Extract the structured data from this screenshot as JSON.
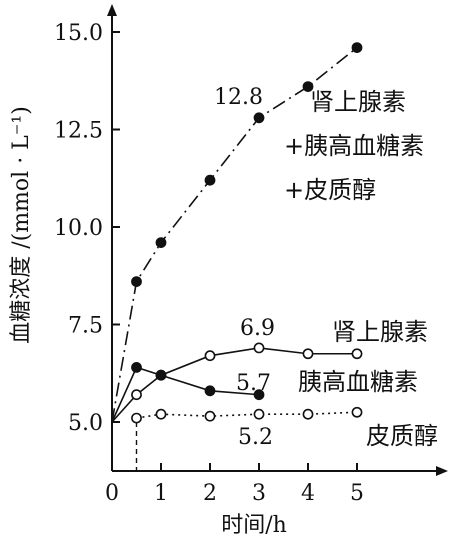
{
  "chart_data": {
    "type": "line",
    "xlabel": "时间/h",
    "ylabel": "血糖浓度 /(mmol · L⁻¹)",
    "xlim": [
      0,
      5.2
    ],
    "ylim": [
      5.0,
      15.3
    ],
    "x_ticks": [
      "0",
      "1",
      "2",
      "3",
      "4",
      "5"
    ],
    "y_ticks": [
      "5.0",
      "7.5",
      "10.0",
      "12.5",
      "15.0"
    ],
    "series": [
      {
        "name": "肾上腺素+胰高血糖素+皮质醇",
        "label_lines": [
          "肾上腺素",
          "+胰高血糖素",
          "+皮质醇"
        ],
        "marker": "filled",
        "line_style": "dashdot",
        "points": [
          [
            0,
            5.0
          ],
          [
            0.5,
            8.6
          ],
          [
            1,
            9.6
          ],
          [
            2,
            11.2
          ],
          [
            3,
            12.8
          ],
          [
            4,
            13.6
          ],
          [
            5,
            14.6
          ]
        ]
      },
      {
        "name": "肾上腺素",
        "label_lines": [
          "肾上腺素"
        ],
        "marker": "open",
        "line_style": "solid",
        "points": [
          [
            0,
            5.0
          ],
          [
            0.5,
            5.7
          ],
          [
            1,
            6.2
          ],
          [
            2,
            6.7
          ],
          [
            3,
            6.9
          ],
          [
            4,
            6.75
          ],
          [
            5,
            6.75
          ]
        ]
      },
      {
        "name": "胰高血糖素",
        "label_lines": [
          "胰高血糖素"
        ],
        "marker": "filled",
        "line_style": "solid",
        "points": [
          [
            0,
            5.0
          ],
          [
            0.5,
            6.4
          ],
          [
            1,
            6.2
          ],
          [
            2,
            5.8
          ],
          [
            3,
            5.7
          ]
        ]
      },
      {
        "name": "皮质醇",
        "label_lines": [
          "皮质醇"
        ],
        "marker": "open",
        "line_style": "dotted",
        "points": [
          [
            0.5,
            5.1
          ],
          [
            1,
            5.2
          ],
          [
            2,
            5.15
          ],
          [
            3,
            5.2
          ],
          [
            4,
            5.2
          ],
          [
            5,
            5.25
          ]
        ]
      }
    ],
    "annotations": [
      {
        "text": "12.8",
        "x": 3,
        "y": 12.8
      },
      {
        "text": "6.9",
        "x": 3,
        "y": 6.9
      },
      {
        "text": "5.7",
        "x": 3,
        "y": 5.7
      },
      {
        "text": "5.2",
        "x": 3,
        "y": 5.2
      }
    ],
    "reference_line": {
      "x": 0.5,
      "style": "dashed"
    }
  }
}
